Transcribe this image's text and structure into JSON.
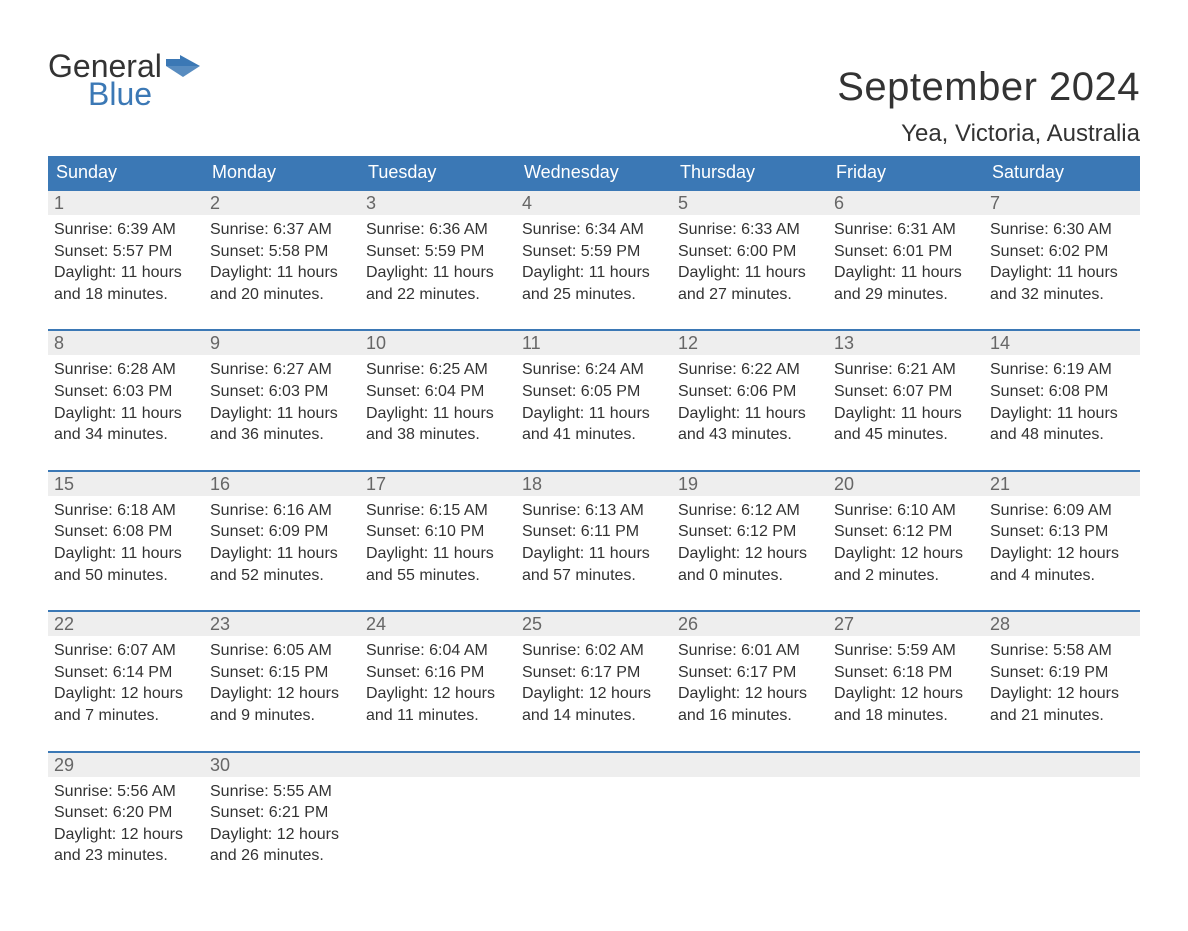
{
  "logo": {
    "text1": "General",
    "text2": "Blue",
    "flag_color": "#3b78b5"
  },
  "title": "September 2024",
  "location": "Yea, Victoria, Australia",
  "colors": {
    "header_bg": "#3b78b5",
    "header_text": "#ffffff",
    "daynum_bg": "#eeeeee",
    "daynum_text": "#666666",
    "body_text": "#333333",
    "row_border": "#3b78b5",
    "page_bg": "#ffffff"
  },
  "day_headers": [
    "Sunday",
    "Monday",
    "Tuesday",
    "Wednesday",
    "Thursday",
    "Friday",
    "Saturday"
  ],
  "weeks": [
    [
      {
        "day": "1",
        "sunrise": "6:39 AM",
        "sunset": "5:57 PM",
        "daylight_l1": "Daylight: 11 hours",
        "daylight_l2": "and 18 minutes."
      },
      {
        "day": "2",
        "sunrise": "6:37 AM",
        "sunset": "5:58 PM",
        "daylight_l1": "Daylight: 11 hours",
        "daylight_l2": "and 20 minutes."
      },
      {
        "day": "3",
        "sunrise": "6:36 AM",
        "sunset": "5:59 PM",
        "daylight_l1": "Daylight: 11 hours",
        "daylight_l2": "and 22 minutes."
      },
      {
        "day": "4",
        "sunrise": "6:34 AM",
        "sunset": "5:59 PM",
        "daylight_l1": "Daylight: 11 hours",
        "daylight_l2": "and 25 minutes."
      },
      {
        "day": "5",
        "sunrise": "6:33 AM",
        "sunset": "6:00 PM",
        "daylight_l1": "Daylight: 11 hours",
        "daylight_l2": "and 27 minutes."
      },
      {
        "day": "6",
        "sunrise": "6:31 AM",
        "sunset": "6:01 PM",
        "daylight_l1": "Daylight: 11 hours",
        "daylight_l2": "and 29 minutes."
      },
      {
        "day": "7",
        "sunrise": "6:30 AM",
        "sunset": "6:02 PM",
        "daylight_l1": "Daylight: 11 hours",
        "daylight_l2": "and 32 minutes."
      }
    ],
    [
      {
        "day": "8",
        "sunrise": "6:28 AM",
        "sunset": "6:03 PM",
        "daylight_l1": "Daylight: 11 hours",
        "daylight_l2": "and 34 minutes."
      },
      {
        "day": "9",
        "sunrise": "6:27 AM",
        "sunset": "6:03 PM",
        "daylight_l1": "Daylight: 11 hours",
        "daylight_l2": "and 36 minutes."
      },
      {
        "day": "10",
        "sunrise": "6:25 AM",
        "sunset": "6:04 PM",
        "daylight_l1": "Daylight: 11 hours",
        "daylight_l2": "and 38 minutes."
      },
      {
        "day": "11",
        "sunrise": "6:24 AM",
        "sunset": "6:05 PM",
        "daylight_l1": "Daylight: 11 hours",
        "daylight_l2": "and 41 minutes."
      },
      {
        "day": "12",
        "sunrise": "6:22 AM",
        "sunset": "6:06 PM",
        "daylight_l1": "Daylight: 11 hours",
        "daylight_l2": "and 43 minutes."
      },
      {
        "day": "13",
        "sunrise": "6:21 AM",
        "sunset": "6:07 PM",
        "daylight_l1": "Daylight: 11 hours",
        "daylight_l2": "and 45 minutes."
      },
      {
        "day": "14",
        "sunrise": "6:19 AM",
        "sunset": "6:08 PM",
        "daylight_l1": "Daylight: 11 hours",
        "daylight_l2": "and 48 minutes."
      }
    ],
    [
      {
        "day": "15",
        "sunrise": "6:18 AM",
        "sunset": "6:08 PM",
        "daylight_l1": "Daylight: 11 hours",
        "daylight_l2": "and 50 minutes."
      },
      {
        "day": "16",
        "sunrise": "6:16 AM",
        "sunset": "6:09 PM",
        "daylight_l1": "Daylight: 11 hours",
        "daylight_l2": "and 52 minutes."
      },
      {
        "day": "17",
        "sunrise": "6:15 AM",
        "sunset": "6:10 PM",
        "daylight_l1": "Daylight: 11 hours",
        "daylight_l2": "and 55 minutes."
      },
      {
        "day": "18",
        "sunrise": "6:13 AM",
        "sunset": "6:11 PM",
        "daylight_l1": "Daylight: 11 hours",
        "daylight_l2": "and 57 minutes."
      },
      {
        "day": "19",
        "sunrise": "6:12 AM",
        "sunset": "6:12 PM",
        "daylight_l1": "Daylight: 12 hours",
        "daylight_l2": "and 0 minutes."
      },
      {
        "day": "20",
        "sunrise": "6:10 AM",
        "sunset": "6:12 PM",
        "daylight_l1": "Daylight: 12 hours",
        "daylight_l2": "and 2 minutes."
      },
      {
        "day": "21",
        "sunrise": "6:09 AM",
        "sunset": "6:13 PM",
        "daylight_l1": "Daylight: 12 hours",
        "daylight_l2": "and 4 minutes."
      }
    ],
    [
      {
        "day": "22",
        "sunrise": "6:07 AM",
        "sunset": "6:14 PM",
        "daylight_l1": "Daylight: 12 hours",
        "daylight_l2": "and 7 minutes."
      },
      {
        "day": "23",
        "sunrise": "6:05 AM",
        "sunset": "6:15 PM",
        "daylight_l1": "Daylight: 12 hours",
        "daylight_l2": "and 9 minutes."
      },
      {
        "day": "24",
        "sunrise": "6:04 AM",
        "sunset": "6:16 PM",
        "daylight_l1": "Daylight: 12 hours",
        "daylight_l2": "and 11 minutes."
      },
      {
        "day": "25",
        "sunrise": "6:02 AM",
        "sunset": "6:17 PM",
        "daylight_l1": "Daylight: 12 hours",
        "daylight_l2": "and 14 minutes."
      },
      {
        "day": "26",
        "sunrise": "6:01 AM",
        "sunset": "6:17 PM",
        "daylight_l1": "Daylight: 12 hours",
        "daylight_l2": "and 16 minutes."
      },
      {
        "day": "27",
        "sunrise": "5:59 AM",
        "sunset": "6:18 PM",
        "daylight_l1": "Daylight: 12 hours",
        "daylight_l2": "and 18 minutes."
      },
      {
        "day": "28",
        "sunrise": "5:58 AM",
        "sunset": "6:19 PM",
        "daylight_l1": "Daylight: 12 hours",
        "daylight_l2": "and 21 minutes."
      }
    ],
    [
      {
        "day": "29",
        "sunrise": "5:56 AM",
        "sunset": "6:20 PM",
        "daylight_l1": "Daylight: 12 hours",
        "daylight_l2": "and 23 minutes."
      },
      {
        "day": "30",
        "sunrise": "5:55 AM",
        "sunset": "6:21 PM",
        "daylight_l1": "Daylight: 12 hours",
        "daylight_l2": "and 26 minutes."
      },
      {
        "empty": true
      },
      {
        "empty": true
      },
      {
        "empty": true
      },
      {
        "empty": true
      },
      {
        "empty": true
      }
    ]
  ],
  "labels": {
    "sunrise_prefix": "Sunrise: ",
    "sunset_prefix": "Sunset: "
  }
}
